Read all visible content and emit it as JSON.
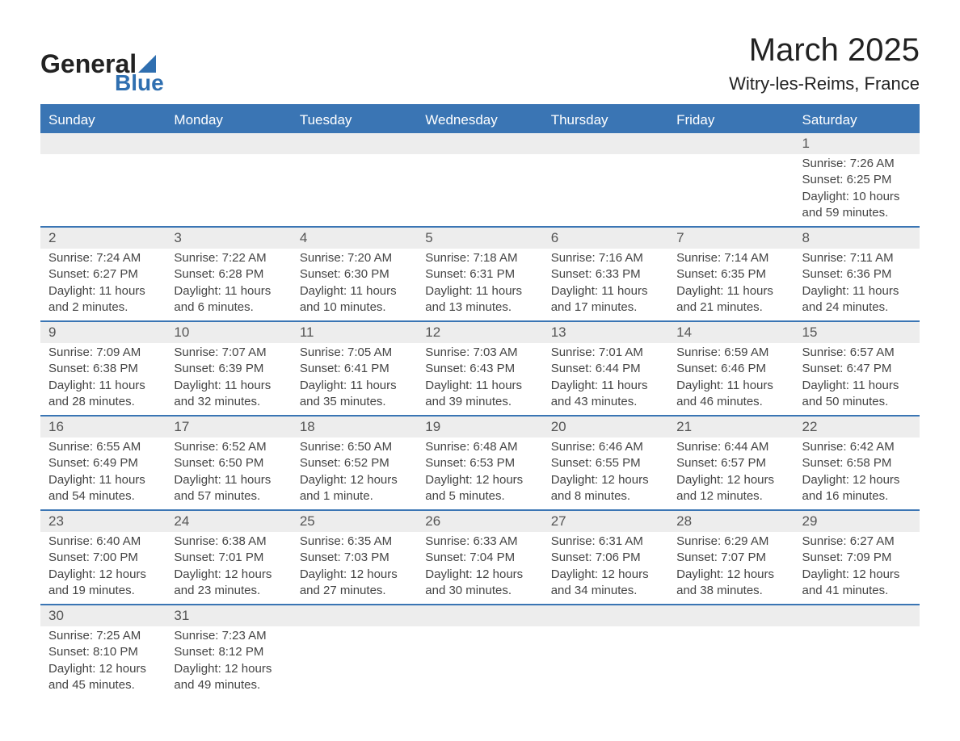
{
  "logo": {
    "general": "General",
    "blue": "Blue"
  },
  "title": "March 2025",
  "subtitle": "Witry-les-Reims, France",
  "colors": {
    "header_bg": "#3a75b4",
    "row_stripe": "#ededed",
    "logo_accent": "#2f6fb0"
  },
  "day_headers": [
    "Sunday",
    "Monday",
    "Tuesday",
    "Wednesday",
    "Thursday",
    "Friday",
    "Saturday"
  ],
  "weeks": [
    [
      null,
      null,
      null,
      null,
      null,
      null,
      {
        "n": "1",
        "sunrise": "7:26 AM",
        "sunset": "6:25 PM",
        "daylight": "10 hours and 59 minutes."
      }
    ],
    [
      {
        "n": "2",
        "sunrise": "7:24 AM",
        "sunset": "6:27 PM",
        "daylight": "11 hours and 2 minutes."
      },
      {
        "n": "3",
        "sunrise": "7:22 AM",
        "sunset": "6:28 PM",
        "daylight": "11 hours and 6 minutes."
      },
      {
        "n": "4",
        "sunrise": "7:20 AM",
        "sunset": "6:30 PM",
        "daylight": "11 hours and 10 minutes."
      },
      {
        "n": "5",
        "sunrise": "7:18 AM",
        "sunset": "6:31 PM",
        "daylight": "11 hours and 13 minutes."
      },
      {
        "n": "6",
        "sunrise": "7:16 AM",
        "sunset": "6:33 PM",
        "daylight": "11 hours and 17 minutes."
      },
      {
        "n": "7",
        "sunrise": "7:14 AM",
        "sunset": "6:35 PM",
        "daylight": "11 hours and 21 minutes."
      },
      {
        "n": "8",
        "sunrise": "7:11 AM",
        "sunset": "6:36 PM",
        "daylight": "11 hours and 24 minutes."
      }
    ],
    [
      {
        "n": "9",
        "sunrise": "7:09 AM",
        "sunset": "6:38 PM",
        "daylight": "11 hours and 28 minutes."
      },
      {
        "n": "10",
        "sunrise": "7:07 AM",
        "sunset": "6:39 PM",
        "daylight": "11 hours and 32 minutes."
      },
      {
        "n": "11",
        "sunrise": "7:05 AM",
        "sunset": "6:41 PM",
        "daylight": "11 hours and 35 minutes."
      },
      {
        "n": "12",
        "sunrise": "7:03 AM",
        "sunset": "6:43 PM",
        "daylight": "11 hours and 39 minutes."
      },
      {
        "n": "13",
        "sunrise": "7:01 AM",
        "sunset": "6:44 PM",
        "daylight": "11 hours and 43 minutes."
      },
      {
        "n": "14",
        "sunrise": "6:59 AM",
        "sunset": "6:46 PM",
        "daylight": "11 hours and 46 minutes."
      },
      {
        "n": "15",
        "sunrise": "6:57 AM",
        "sunset": "6:47 PM",
        "daylight": "11 hours and 50 minutes."
      }
    ],
    [
      {
        "n": "16",
        "sunrise": "6:55 AM",
        "sunset": "6:49 PM",
        "daylight": "11 hours and 54 minutes."
      },
      {
        "n": "17",
        "sunrise": "6:52 AM",
        "sunset": "6:50 PM",
        "daylight": "11 hours and 57 minutes."
      },
      {
        "n": "18",
        "sunrise": "6:50 AM",
        "sunset": "6:52 PM",
        "daylight": "12 hours and 1 minute."
      },
      {
        "n": "19",
        "sunrise": "6:48 AM",
        "sunset": "6:53 PM",
        "daylight": "12 hours and 5 minutes."
      },
      {
        "n": "20",
        "sunrise": "6:46 AM",
        "sunset": "6:55 PM",
        "daylight": "12 hours and 8 minutes."
      },
      {
        "n": "21",
        "sunrise": "6:44 AM",
        "sunset": "6:57 PM",
        "daylight": "12 hours and 12 minutes."
      },
      {
        "n": "22",
        "sunrise": "6:42 AM",
        "sunset": "6:58 PM",
        "daylight": "12 hours and 16 minutes."
      }
    ],
    [
      {
        "n": "23",
        "sunrise": "6:40 AM",
        "sunset": "7:00 PM",
        "daylight": "12 hours and 19 minutes."
      },
      {
        "n": "24",
        "sunrise": "6:38 AM",
        "sunset": "7:01 PM",
        "daylight": "12 hours and 23 minutes."
      },
      {
        "n": "25",
        "sunrise": "6:35 AM",
        "sunset": "7:03 PM",
        "daylight": "12 hours and 27 minutes."
      },
      {
        "n": "26",
        "sunrise": "6:33 AM",
        "sunset": "7:04 PM",
        "daylight": "12 hours and 30 minutes."
      },
      {
        "n": "27",
        "sunrise": "6:31 AM",
        "sunset": "7:06 PM",
        "daylight": "12 hours and 34 minutes."
      },
      {
        "n": "28",
        "sunrise": "6:29 AM",
        "sunset": "7:07 PM",
        "daylight": "12 hours and 38 minutes."
      },
      {
        "n": "29",
        "sunrise": "6:27 AM",
        "sunset": "7:09 PM",
        "daylight": "12 hours and 41 minutes."
      }
    ],
    [
      {
        "n": "30",
        "sunrise": "7:25 AM",
        "sunset": "8:10 PM",
        "daylight": "12 hours and 45 minutes."
      },
      {
        "n": "31",
        "sunrise": "7:23 AM",
        "sunset": "8:12 PM",
        "daylight": "12 hours and 49 minutes."
      },
      null,
      null,
      null,
      null,
      null
    ]
  ],
  "labels": {
    "sunrise": "Sunrise: ",
    "sunset": "Sunset: ",
    "daylight": "Daylight: "
  }
}
